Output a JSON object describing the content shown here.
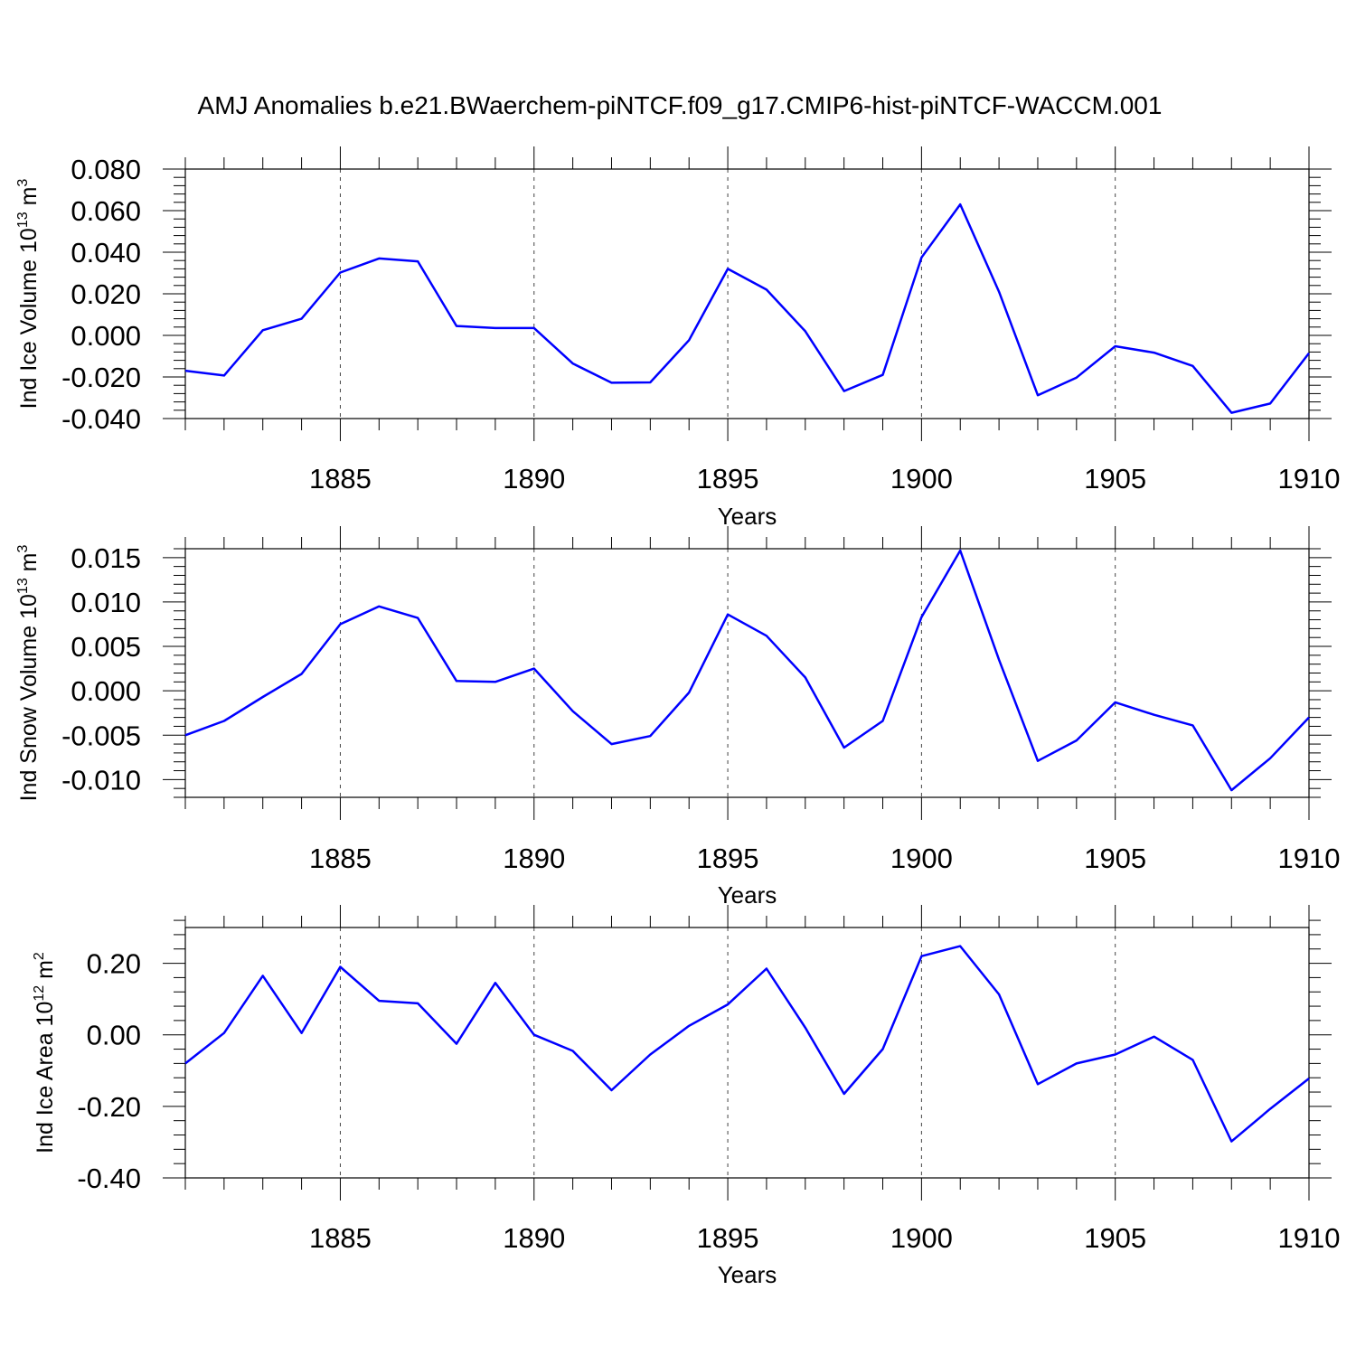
{
  "title": "AMJ Anomalies b.e21.BWaerchem-piNTCF.f09_g17.CMIP6-hist-piNTCF-WACCM.001",
  "chart_data": [
    {
      "type": "line",
      "ylabel": {
        "text": "Ind Ice Volume 10",
        "exp": "13",
        "unit": " m",
        "unit_exp": "3"
      },
      "xlabel": "Years",
      "xlim": [
        1881,
        1910
      ],
      "ylim": [
        -0.04,
        0.08
      ],
      "yticks": [
        -0.04,
        -0.02,
        0.0,
        0.02,
        0.04,
        0.06,
        0.08
      ],
      "ytick_labels": [
        "-0.040",
        "-0.020",
        "0.000",
        "0.020",
        "0.040",
        "0.060",
        "0.080"
      ],
      "xticks": [
        1885,
        1890,
        1895,
        1900,
        1905,
        1910
      ],
      "xtick_labels": [
        "1885",
        "1890",
        "1895",
        "1900",
        "1905",
        "1910"
      ],
      "x": [
        1881,
        1882,
        1883,
        1884,
        1885,
        1886,
        1887,
        1888,
        1889,
        1890,
        1891,
        1892,
        1893,
        1894,
        1895,
        1896,
        1897,
        1898,
        1899,
        1900,
        1901,
        1902,
        1903,
        1904,
        1905,
        1906,
        1907,
        1908,
        1909,
        1910
      ],
      "series": [
        {
          "name": "Ind Ice Volume",
          "color": "#0000ff",
          "values": [
            -0.017,
            -0.0193,
            0.0025,
            0.008,
            0.0302,
            0.037,
            0.0356,
            0.0045,
            0.0035,
            0.0035,
            -0.0135,
            -0.0228,
            -0.0226,
            -0.0023,
            0.032,
            0.022,
            0.002,
            -0.0268,
            -0.019,
            0.0375,
            0.063,
            0.021,
            -0.0288,
            -0.0203,
            -0.0052,
            -0.0083,
            -0.0147,
            -0.0372,
            -0.0328,
            -0.0085
          ]
        }
      ]
    },
    {
      "type": "line",
      "ylabel": {
        "text": "Ind Snow Volume 10",
        "exp": "13",
        "unit": " m",
        "unit_exp": "3"
      },
      "xlabel": "Years",
      "xlim": [
        1881,
        1910
      ],
      "ylim": [
        -0.012,
        0.016
      ],
      "yticks": [
        -0.01,
        -0.005,
        0.0,
        0.005,
        0.01,
        0.015
      ],
      "ytick_labels": [
        "-0.010",
        "-0.005",
        "0.000",
        "0.005",
        "0.010",
        "0.015"
      ],
      "xticks": [
        1885,
        1890,
        1895,
        1900,
        1905,
        1910
      ],
      "xtick_labels": [
        "1885",
        "1890",
        "1895",
        "1900",
        "1905",
        "1910"
      ],
      "x": [
        1881,
        1882,
        1883,
        1884,
        1885,
        1886,
        1887,
        1888,
        1889,
        1890,
        1891,
        1892,
        1893,
        1894,
        1895,
        1896,
        1897,
        1898,
        1899,
        1900,
        1901,
        1902,
        1903,
        1904,
        1905,
        1906,
        1907,
        1908,
        1909,
        1910
      ],
      "series": [
        {
          "name": "Ind Snow Volume",
          "color": "#0000ff",
          "values": [
            -0.005,
            -0.0034,
            -0.0007,
            0.0019,
            0.0075,
            0.0095,
            0.0082,
            0.0011,
            0.001,
            0.0025,
            -0.0023,
            -0.006,
            -0.0051,
            -0.0002,
            0.0086,
            0.0062,
            0.0015,
            -0.0064,
            -0.0034,
            0.0083,
            0.0158,
            0.0035,
            -0.0079,
            -0.0056,
            -0.0013,
            -0.0027,
            -0.0039,
            -0.0112,
            -0.0076,
            -0.003
          ]
        }
      ]
    },
    {
      "type": "line",
      "ylabel": {
        "text": "Ind Ice Area 10",
        "exp": "12",
        "unit": " m",
        "unit_exp": "2"
      },
      "xlabel": "Years",
      "xlim": [
        1881,
        1910
      ],
      "ylim": [
        -0.4,
        0.3
      ],
      "yticks": [
        -0.4,
        -0.2,
        0.0,
        0.2
      ],
      "ytick_labels": [
        "-0.40",
        "-0.20",
        "0.00",
        "0.20"
      ],
      "xticks": [
        1885,
        1890,
        1895,
        1900,
        1905,
        1910
      ],
      "xtick_labels": [
        "1885",
        "1890",
        "1895",
        "1900",
        "1905",
        "1910"
      ],
      "x": [
        1881,
        1882,
        1883,
        1884,
        1885,
        1886,
        1887,
        1888,
        1889,
        1890,
        1891,
        1892,
        1893,
        1894,
        1895,
        1896,
        1897,
        1898,
        1899,
        1900,
        1901,
        1902,
        1903,
        1904,
        1905,
        1906,
        1907,
        1908,
        1909,
        1910
      ],
      "series": [
        {
          "name": "Ind Ice Area",
          "color": "#0000ff",
          "values": [
            -0.08,
            0.005,
            0.165,
            0.005,
            0.19,
            0.095,
            0.088,
            -0.025,
            0.145,
            0.0,
            -0.045,
            -0.155,
            -0.055,
            0.025,
            0.085,
            0.185,
            0.02,
            -0.165,
            -0.04,
            0.22,
            0.248,
            0.113,
            -0.138,
            -0.08,
            -0.055,
            -0.005,
            -0.07,
            -0.298,
            -0.207,
            -0.122
          ]
        }
      ]
    }
  ]
}
